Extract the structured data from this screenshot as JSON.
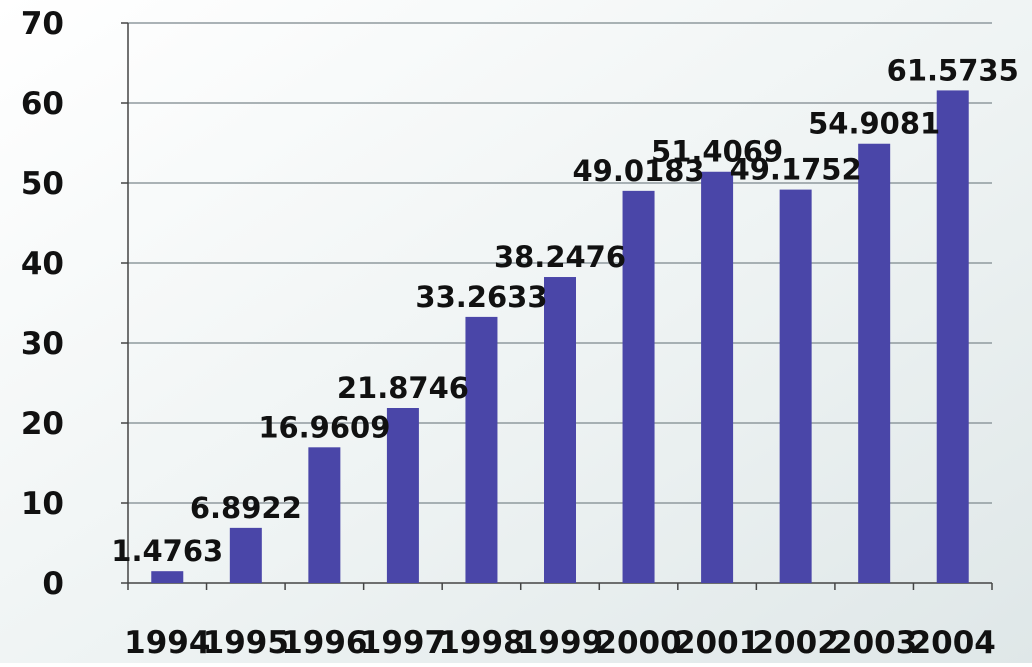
{
  "chart_data": {
    "type": "bar",
    "title": "",
    "xlabel": "",
    "ylabel": "",
    "ylim": [
      0,
      70
    ],
    "yticks": [
      0,
      10,
      20,
      30,
      40,
      50,
      60,
      70
    ],
    "ytick_labels": [
      "0",
      "10",
      "20",
      "30",
      "40",
      "50",
      "60",
      "70"
    ],
    "categories": [
      "1994",
      "1995",
      "1996",
      "1997",
      "1998",
      "1999",
      "2000",
      "2001",
      "2002",
      "2003",
      "2004"
    ],
    "values": [
      1.4763,
      6.8922,
      16.9609,
      21.8746,
      33.2633,
      38.2476,
      49.0183,
      51.4069,
      49.1752,
      54.9081,
      61.5735
    ],
    "data_labels": [
      "1.4763",
      "6.8922",
      "16.9609",
      "21.8746",
      "33.2633",
      "38.2476",
      "49.0183",
      "51.4069",
      "49.1752",
      "54.9081",
      "61.5735"
    ],
    "grid": true,
    "legend": "none",
    "colors": {
      "bar": "#4a46a8",
      "grid": "#8f9a9e",
      "axis": "#444444",
      "text": "#111111",
      "background_light": "#ffffff",
      "background_tint": "#dfe7e8"
    }
  }
}
